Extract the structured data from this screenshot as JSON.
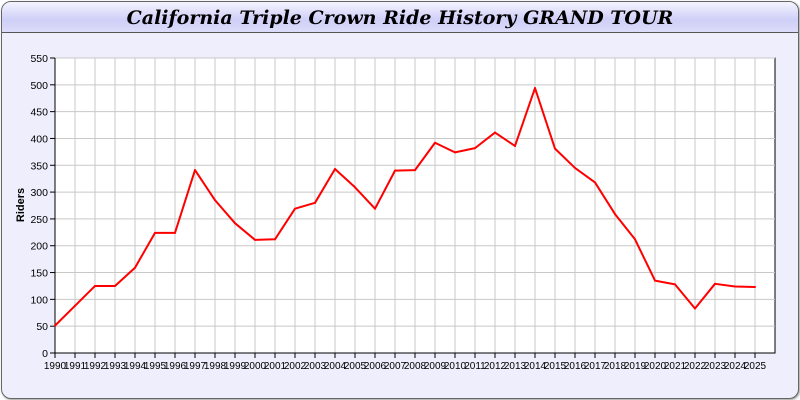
{
  "window": {
    "title": "California Triple Crown Ride History GRAND TOUR"
  },
  "chart_data": {
    "type": "line",
    "title": "California Triple Crown Ride History GRAND TOUR",
    "xlabel": "",
    "ylabel": "Riders",
    "x": [
      1990,
      1991,
      1992,
      1993,
      1994,
      1995,
      1996,
      1997,
      1998,
      1999,
      2000,
      2001,
      2002,
      2003,
      2004,
      2005,
      2006,
      2007,
      2008,
      2009,
      2010,
      2011,
      2012,
      2013,
      2014,
      2015,
      2016,
      2017,
      2018,
      2019,
      2020,
      2021,
      2022,
      2023,
      2024,
      2025
    ],
    "series": [
      {
        "color": "#ff0000",
        "values": [
          51,
          88,
          125,
          125,
          159,
          224,
          224,
          341,
          285,
          242,
          211,
          212,
          269,
          280,
          343,
          309,
          269,
          340,
          341,
          392,
          374,
          382,
          411,
          386,
          494,
          381,
          345,
          318,
          259,
          212,
          135,
          128,
          83,
          129,
          124,
          123
        ]
      }
    ],
    "ylim": [
      0,
      550
    ],
    "yticks": [
      0,
      50,
      100,
      150,
      200,
      250,
      300,
      350,
      400,
      450,
      500,
      550
    ],
    "grid": true,
    "legend": "none"
  }
}
